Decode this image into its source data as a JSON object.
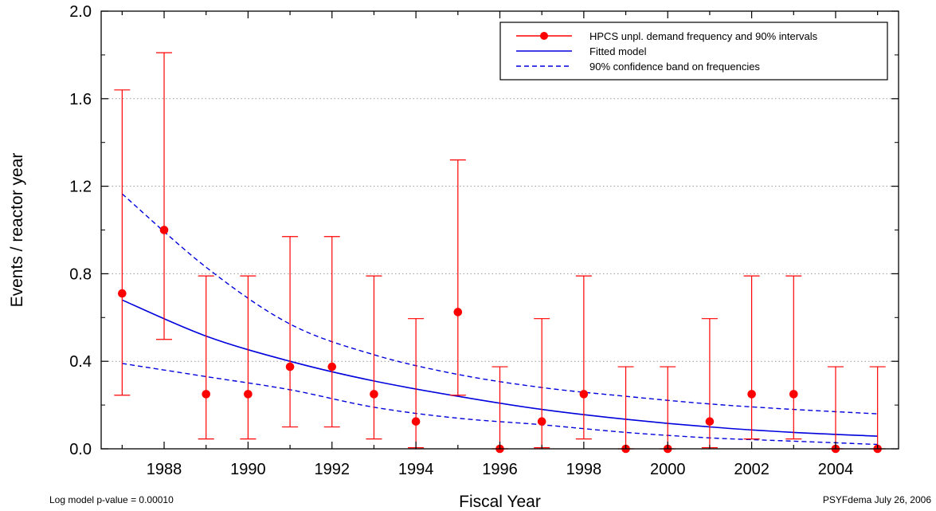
{
  "chart_data": {
    "type": "scatter",
    "xlabel": "Fiscal Year",
    "ylabel": "Events / reactor year",
    "xlim": [
      1986.5,
      2005.5
    ],
    "ylim": [
      0,
      2.0
    ],
    "x_ticks": [
      1988,
      1990,
      1992,
      1994,
      1996,
      1998,
      2000,
      2002,
      2004
    ],
    "y_ticks": [
      0.0,
      0.4,
      0.8,
      1.2,
      1.6,
      2.0
    ],
    "y_tick_labels": [
      "0.0",
      "0.4",
      "0.8",
      "1.2",
      "1.6",
      "2.0"
    ],
    "grid": "horizontal dotted",
    "legend_position": "top-right",
    "colors": {
      "points": "#ff0000",
      "fit": "#0000dd"
    },
    "series": [
      {
        "name": "HPCS unpl. demand frequency and 90% intervals",
        "kind": "points-with-error-bars",
        "x": [
          1987,
          1988,
          1989,
          1990,
          1991,
          1992,
          1993,
          1994,
          1995,
          1996,
          1997,
          1998,
          1999,
          2000,
          2001,
          2002,
          2003,
          2004,
          2005
        ],
        "y": [
          0.71,
          1.0,
          0.25,
          0.25,
          0.375,
          0.375,
          0.25,
          0.125,
          0.625,
          0.0,
          0.125,
          0.25,
          0.0,
          0.0,
          0.125,
          0.25,
          0.25,
          0.0,
          0.0
        ],
        "lower": [
          0.245,
          0.5,
          0.045,
          0.045,
          0.1,
          0.1,
          0.045,
          0.005,
          0.245,
          0.0,
          0.005,
          0.045,
          0.0,
          0.0,
          0.005,
          0.045,
          0.045,
          0.0,
          0.0
        ],
        "upper": [
          1.64,
          1.81,
          0.79,
          0.79,
          0.97,
          0.97,
          0.79,
          0.595,
          1.32,
          0.375,
          0.595,
          0.79,
          0.375,
          0.375,
          0.595,
          0.79,
          0.79,
          0.375,
          0.375
        ]
      },
      {
        "name": "Fitted model",
        "kind": "line",
        "x": [
          1987,
          1989,
          1991,
          1993,
          1995,
          1997,
          1999,
          2001,
          2003,
          2005
        ],
        "y": [
          0.68,
          0.515,
          0.4,
          0.31,
          0.24,
          0.18,
          0.135,
          0.1,
          0.075,
          0.058
        ]
      },
      {
        "name": "90% confidence band on frequencies",
        "kind": "dashed-band",
        "x": [
          1987,
          1989,
          1991,
          1993,
          1995,
          1997,
          1999,
          2001,
          2003,
          2005
        ],
        "upper": [
          1.165,
          0.83,
          0.57,
          0.43,
          0.34,
          0.28,
          0.24,
          0.205,
          0.18,
          0.16
        ],
        "lower": [
          0.39,
          0.33,
          0.27,
          0.19,
          0.14,
          0.11,
          0.075,
          0.05,
          0.035,
          0.02
        ]
      }
    ]
  },
  "footer": {
    "left_note": "Log model p-value = 0.00010",
    "right_note": "PSYFdema  July 26, 2006"
  }
}
